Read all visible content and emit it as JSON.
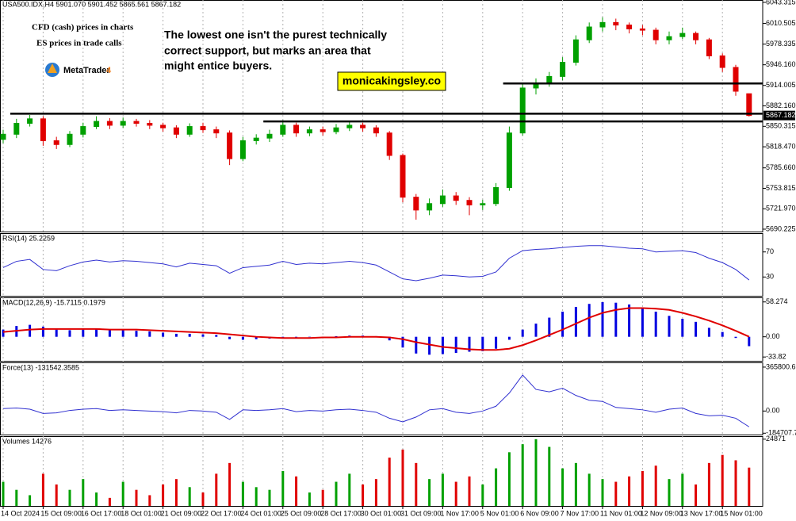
{
  "chart_data": [
    {
      "type": "candlestick",
      "header": "USA500.IDX,H4  5901.070 5901.452 5865.561 5867.182",
      "notes": [
        "CFD (cash) prices in charts",
        "ES prices in trade calls"
      ],
      "logo": {
        "name": "MetaTrader",
        "version": "4"
      },
      "comment": [
        "The lowest one isn't the purest technically",
        "correct support, but marks an area that",
        "might entice buyers."
      ],
      "watermark": "monicakingsley.co",
      "up_color": "#00a000",
      "down_color": "#e00000",
      "open": [
        5830,
        5838,
        5855,
        5862,
        5828,
        5822,
        5838,
        5850,
        5858,
        5852,
        5858,
        5855,
        5852,
        5848,
        5838,
        5850,
        5845,
        5840,
        5800,
        5828,
        5832,
        5838,
        5852,
        5840,
        5845,
        5842,
        5848,
        5852,
        5848,
        5840,
        5805,
        5740,
        5720,
        5730,
        5742,
        5735,
        5728,
        5730,
        5755,
        5840,
        5910,
        5918,
        5928,
        5950,
        5985,
        6005,
        6012,
        6008,
        6002,
        6000,
        5985,
        5990,
        5995,
        5985,
        5960,
        5942,
        5901.07
      ],
      "high": [
        5845,
        5862,
        5868,
        5866,
        5834,
        5843,
        5856,
        5866,
        5863,
        5864,
        5862,
        5860,
        5856,
        5852,
        5855,
        5856,
        5850,
        5844,
        5834,
        5838,
        5845,
        5860,
        5856,
        5850,
        5850,
        5854,
        5858,
        5856,
        5852,
        5843,
        5808,
        5745,
        5738,
        5752,
        5748,
        5740,
        5736,
        5762,
        5850,
        5918,
        5925,
        5935,
        5958,
        5992,
        6012,
        6020,
        6018,
        6012,
        6008,
        6004,
        5998,
        6004,
        5998,
        5988,
        5964,
        5946,
        5901.452
      ],
      "low": [
        5824,
        5832,
        5850,
        5820,
        5815,
        5818,
        5833,
        5846,
        5846,
        5848,
        5850,
        5846,
        5842,
        5832,
        5834,
        5840,
        5832,
        5790,
        5796,
        5822,
        5826,
        5834,
        5834,
        5835,
        5836,
        5838,
        5843,
        5842,
        5834,
        5798,
        5732,
        5705,
        5712,
        5725,
        5728,
        5712,
        5720,
        5726,
        5750,
        5836,
        5900,
        5912,
        5922,
        5945,
        5980,
        5998,
        6000,
        5995,
        5992,
        5978,
        5978,
        5986,
        5978,
        5955,
        5935,
        5898,
        5865.561
      ],
      "close": [
        5838,
        5855,
        5862,
        5828,
        5822,
        5838,
        5850,
        5858,
        5852,
        5858,
        5855,
        5852,
        5848,
        5838,
        5850,
        5845,
        5840,
        5800,
        5828,
        5832,
        5838,
        5852,
        5840,
        5845,
        5842,
        5848,
        5852,
        5848,
        5840,
        5805,
        5740,
        5720,
        5730,
        5742,
        5735,
        5728,
        5730,
        5755,
        5840,
        5910,
        5918,
        5928,
        5950,
        5985,
        6005,
        6012,
        6008,
        6002,
        6000,
        5985,
        5990,
        5995,
        5985,
        5960,
        5942,
        5905,
        5867.182
      ],
      "levels": [
        {
          "value": 5917,
          "from": 37
        },
        {
          "value": 5870,
          "from": 0
        },
        {
          "value": 5858,
          "from": 19
        }
      ],
      "ylim": [
        5686.5,
        6047
      ],
      "yticks": [
        6043.315,
        6010.505,
        5978.335,
        {
          "value": 5946.16,
          "label": "5946.160"
        },
        5914.005,
        {
          "value": 5882.16,
          "label": "5882.160"
        },
        5850.315,
        {
          "value": 5818.47,
          "label": "5818.470"
        },
        {
          "value": 5785.66,
          "label": "5785.660"
        },
        5753.815,
        {
          "value": 5721.97,
          "label": "5721.970"
        },
        5690.225
      ]
    },
    {
      "type": "line",
      "title": "RSI(14) 25.2259",
      "color": "#3030d0",
      "values": [
        45,
        55,
        58,
        42,
        40,
        48,
        54,
        57,
        54,
        56,
        55,
        53,
        51,
        46,
        52,
        50,
        48,
        36,
        45,
        47,
        49,
        55,
        50,
        52,
        51,
        53,
        55,
        53,
        49,
        38,
        27,
        24,
        28,
        33,
        32,
        30,
        31,
        38,
        60,
        72,
        74,
        75,
        77,
        79,
        80,
        80,
        78,
        76,
        75,
        70,
        71,
        72,
        69,
        60,
        53,
        42,
        25.2259
      ],
      "ylim": [
        0,
        100
      ],
      "yticks": [
        70,
        30
      ]
    },
    {
      "type": "macd",
      "title": "MACD(12,26,9) -15.7115 0.1979",
      "color": "#0000e0",
      "signal_color": "#e00000",
      "values": [
        12,
        18,
        20,
        17,
        12,
        11,
        12,
        13,
        12,
        11,
        10,
        9,
        7,
        5,
        5,
        4,
        3,
        -4,
        -5,
        -4,
        -3,
        -1,
        -1,
        0,
        0,
        1,
        2,
        2,
        1,
        -6,
        -18,
        -28,
        -30,
        -29,
        -27,
        -25,
        -24,
        -20,
        -5,
        12,
        22,
        32,
        42,
        50,
        55,
        58,
        57,
        54,
        48,
        42,
        35,
        30,
        25,
        15,
        8,
        -2,
        -15.7115
      ],
      "signal": [
        8,
        10,
        12,
        13,
        13,
        13,
        13,
        13,
        12,
        12,
        12,
        11,
        10,
        9,
        8,
        7,
        6,
        4,
        2,
        0,
        -1,
        -2,
        -2,
        -2,
        -1,
        -1,
        0,
        0,
        0,
        -1,
        -4,
        -9,
        -13,
        -17,
        -19,
        -21,
        -22,
        -22,
        -20,
        -14,
        -6,
        3,
        12,
        22,
        32,
        40,
        45,
        48,
        48,
        47,
        45,
        40,
        34,
        27,
        19,
        10,
        0.1979
      ],
      "ylim": [
        -40.2,
        65.9
      ],
      "yticks": [
        58.274,
        {
          "value": 0,
          "label": "0.00"
        },
        -33.82
      ]
    },
    {
      "type": "line",
      "title": "Force(13) -131542.3585",
      "color": "#3030d0",
      "values": [
        20000,
        25000,
        15000,
        -20000,
        -15000,
        5000,
        15000,
        20000,
        5000,
        10000,
        5000,
        0,
        -5000,
        -15000,
        5000,
        0,
        -10000,
        -70000,
        10000,
        5000,
        10000,
        20000,
        -5000,
        5000,
        0,
        10000,
        15000,
        5000,
        -10000,
        -60000,
        -90000,
        -50000,
        10000,
        20000,
        -10000,
        -20000,
        0,
        40000,
        150000,
        300000,
        180000,
        160000,
        190000,
        130000,
        90000,
        80000,
        30000,
        20000,
        10000,
        -10000,
        15000,
        25000,
        -20000,
        -40000,
        -35000,
        -60000,
        -131542.3585
      ],
      "ylim": [
        -196000,
        405000
      ],
      "yticks": [
        365800.693,
        {
          "value": 0,
          "label": "0.00"
        },
        -184707.78
      ]
    },
    {
      "type": "volume",
      "title": "Volumes 14276",
      "up_color": "#00a000",
      "down_color": "#e00000",
      "values": [
        9000,
        6000,
        4000,
        12000,
        8000,
        6000,
        10000,
        5000,
        3000,
        9000,
        6000,
        4000,
        8000,
        10000,
        7000,
        5000,
        12000,
        16000,
        9000,
        7000,
        6000,
        13000,
        11000,
        5000,
        6000,
        9000,
        12000,
        8000,
        10000,
        18000,
        21000,
        16000,
        10000,
        12000,
        9000,
        11000,
        8000,
        14000,
        20000,
        23000,
        24871,
        22000,
        14000,
        16000,
        12000,
        10000,
        9000,
        11000,
        13000,
        15000,
        10000,
        12000,
        8000,
        16000,
        19000,
        17000,
        14276
      ],
      "categories": [
        "14 Oct 2024",
        null,
        null,
        "15 Oct 09:00",
        null,
        null,
        "16 Oct 17:00",
        null,
        null,
        "18 Oct 01:00",
        null,
        null,
        "21 Oct 09:00",
        null,
        null,
        "22 Oct 17:00",
        null,
        null,
        "24 Oct 01:00",
        null,
        null,
        "25 Oct 09:00",
        null,
        null,
        "28 Oct 17:00",
        null,
        null,
        "30 Oct 01:00",
        null,
        null,
        "31 Oct 09:00",
        null,
        null,
        "1 Nov 17:00",
        null,
        null,
        "5 Nov 01:00",
        null,
        null,
        "6 Nov 09:00",
        null,
        null,
        "7 Nov 17:00",
        null,
        null,
        "11 Nov 01:00",
        null,
        null,
        "12 Nov 09:00",
        null,
        null,
        "13 Nov 17:00",
        null,
        null,
        "15 Nov 01:00",
        null,
        null
      ],
      "ylim": [
        0,
        26000
      ],
      "yticks": [
        24871
      ]
    }
  ]
}
